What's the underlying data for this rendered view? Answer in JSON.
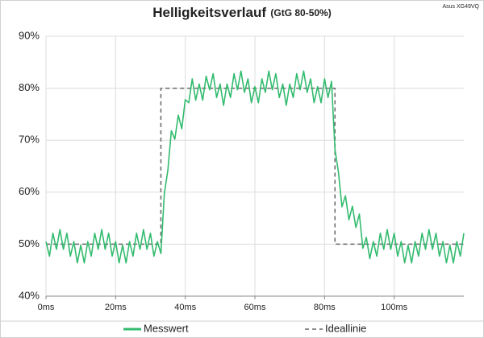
{
  "chart_data": {
    "type": "line",
    "title": "Helligkeitsverlauf",
    "subtitle": "(GtG 80-50%)",
    "annotation": "Asus XG49VQ",
    "xlim": [
      0,
      120
    ],
    "xticks": [
      {
        "value": 0,
        "label": "0ms"
      },
      {
        "value": 20,
        "label": "20ms"
      },
      {
        "value": 40,
        "label": "40ms"
      },
      {
        "value": 60,
        "label": "60ms"
      },
      {
        "value": 80,
        "label": "80ms"
      },
      {
        "value": 100,
        "label": "100ms"
      }
    ],
    "ylim": [
      40,
      90
    ],
    "yticks": [
      {
        "value": 40,
        "label": "40%"
      },
      {
        "value": 50,
        "label": "50%"
      },
      {
        "value": 60,
        "label": "60%"
      },
      {
        "value": 70,
        "label": "70%"
      },
      {
        "value": 80,
        "label": "80%"
      },
      {
        "value": 90,
        "label": "90%"
      }
    ],
    "grid": true,
    "legend": "bottom",
    "series": [
      {
        "name": "Messwert",
        "color": "#33bb6f",
        "dash": false,
        "x": [
          0,
          1,
          2,
          3,
          4,
          5,
          6,
          7,
          8,
          9,
          10,
          11,
          12,
          13,
          14,
          15,
          16,
          17,
          18,
          19,
          20,
          21,
          22,
          23,
          24,
          25,
          26,
          27,
          28,
          29,
          30,
          31,
          32,
          33,
          34,
          35,
          36,
          37,
          38,
          39,
          40,
          41,
          42,
          43,
          44,
          45,
          46,
          47,
          48,
          49,
          50,
          51,
          52,
          53,
          54,
          55,
          56,
          57,
          58,
          59,
          60,
          61,
          62,
          63,
          64,
          65,
          66,
          67,
          68,
          69,
          70,
          71,
          72,
          73,
          74,
          75,
          76,
          77,
          78,
          79,
          80,
          81,
          82,
          83,
          84,
          85,
          86,
          87,
          88,
          89,
          90,
          91,
          92,
          93,
          94,
          95,
          96,
          97,
          98,
          99,
          100,
          101,
          102,
          103,
          104,
          105,
          106,
          107,
          108,
          109,
          110,
          111,
          112,
          113,
          114,
          115,
          116,
          117,
          118,
          119,
          120
        ],
        "values": [
          50.5,
          47.7,
          52.1,
          49,
          52.8,
          49,
          52.1,
          47.7,
          50.5,
          46.4,
          49.8,
          46.4,
          50.5,
          47.7,
          52.1,
          49,
          52.8,
          49,
          52.1,
          47.7,
          50.5,
          46.4,
          49.8,
          46.4,
          50.5,
          47.7,
          52.1,
          49,
          52.8,
          49,
          52.1,
          47.7,
          50.5,
          48.2,
          59.8,
          64.2,
          71.8,
          70.2,
          74.8,
          72.2,
          77.8,
          77.2,
          81.8,
          77.7,
          80.8,
          77.7,
          82.3,
          79.7,
          82.8,
          78.2,
          80.8,
          76.7,
          80.8,
          78.2,
          82.8,
          79.7,
          83.3,
          79.2,
          81.8,
          77.2,
          80.3,
          77.2,
          81.8,
          79.2,
          83.3,
          79.7,
          82.8,
          78.2,
          80.8,
          76.7,
          80.8,
          78.2,
          82.8,
          79.7,
          83.3,
          79.2,
          81.8,
          77.2,
          80.3,
          77.2,
          81.8,
          78.2,
          81.3,
          68.2,
          63.8,
          57.2,
          59.3,
          54.7,
          57.3,
          53.2,
          55.8,
          49.2,
          51.3,
          47.2,
          50.5,
          47.7,
          52.1,
          49,
          52.8,
          49,
          52.1,
          47.7,
          50.5,
          46.4,
          49.8,
          46.4,
          50.5,
          47.7,
          52.1,
          49,
          52.8,
          49,
          52.1,
          47.7,
          50.5,
          46.4,
          49.8,
          46.4,
          50.5,
          47.7,
          52.1
        ]
      },
      {
        "name": "Ideallinie",
        "color": "#666666",
        "dash": true,
        "x": [
          0,
          33,
          33,
          83,
          83,
          120
        ],
        "values": [
          50,
          50,
          80,
          80,
          50,
          50
        ]
      }
    ]
  }
}
